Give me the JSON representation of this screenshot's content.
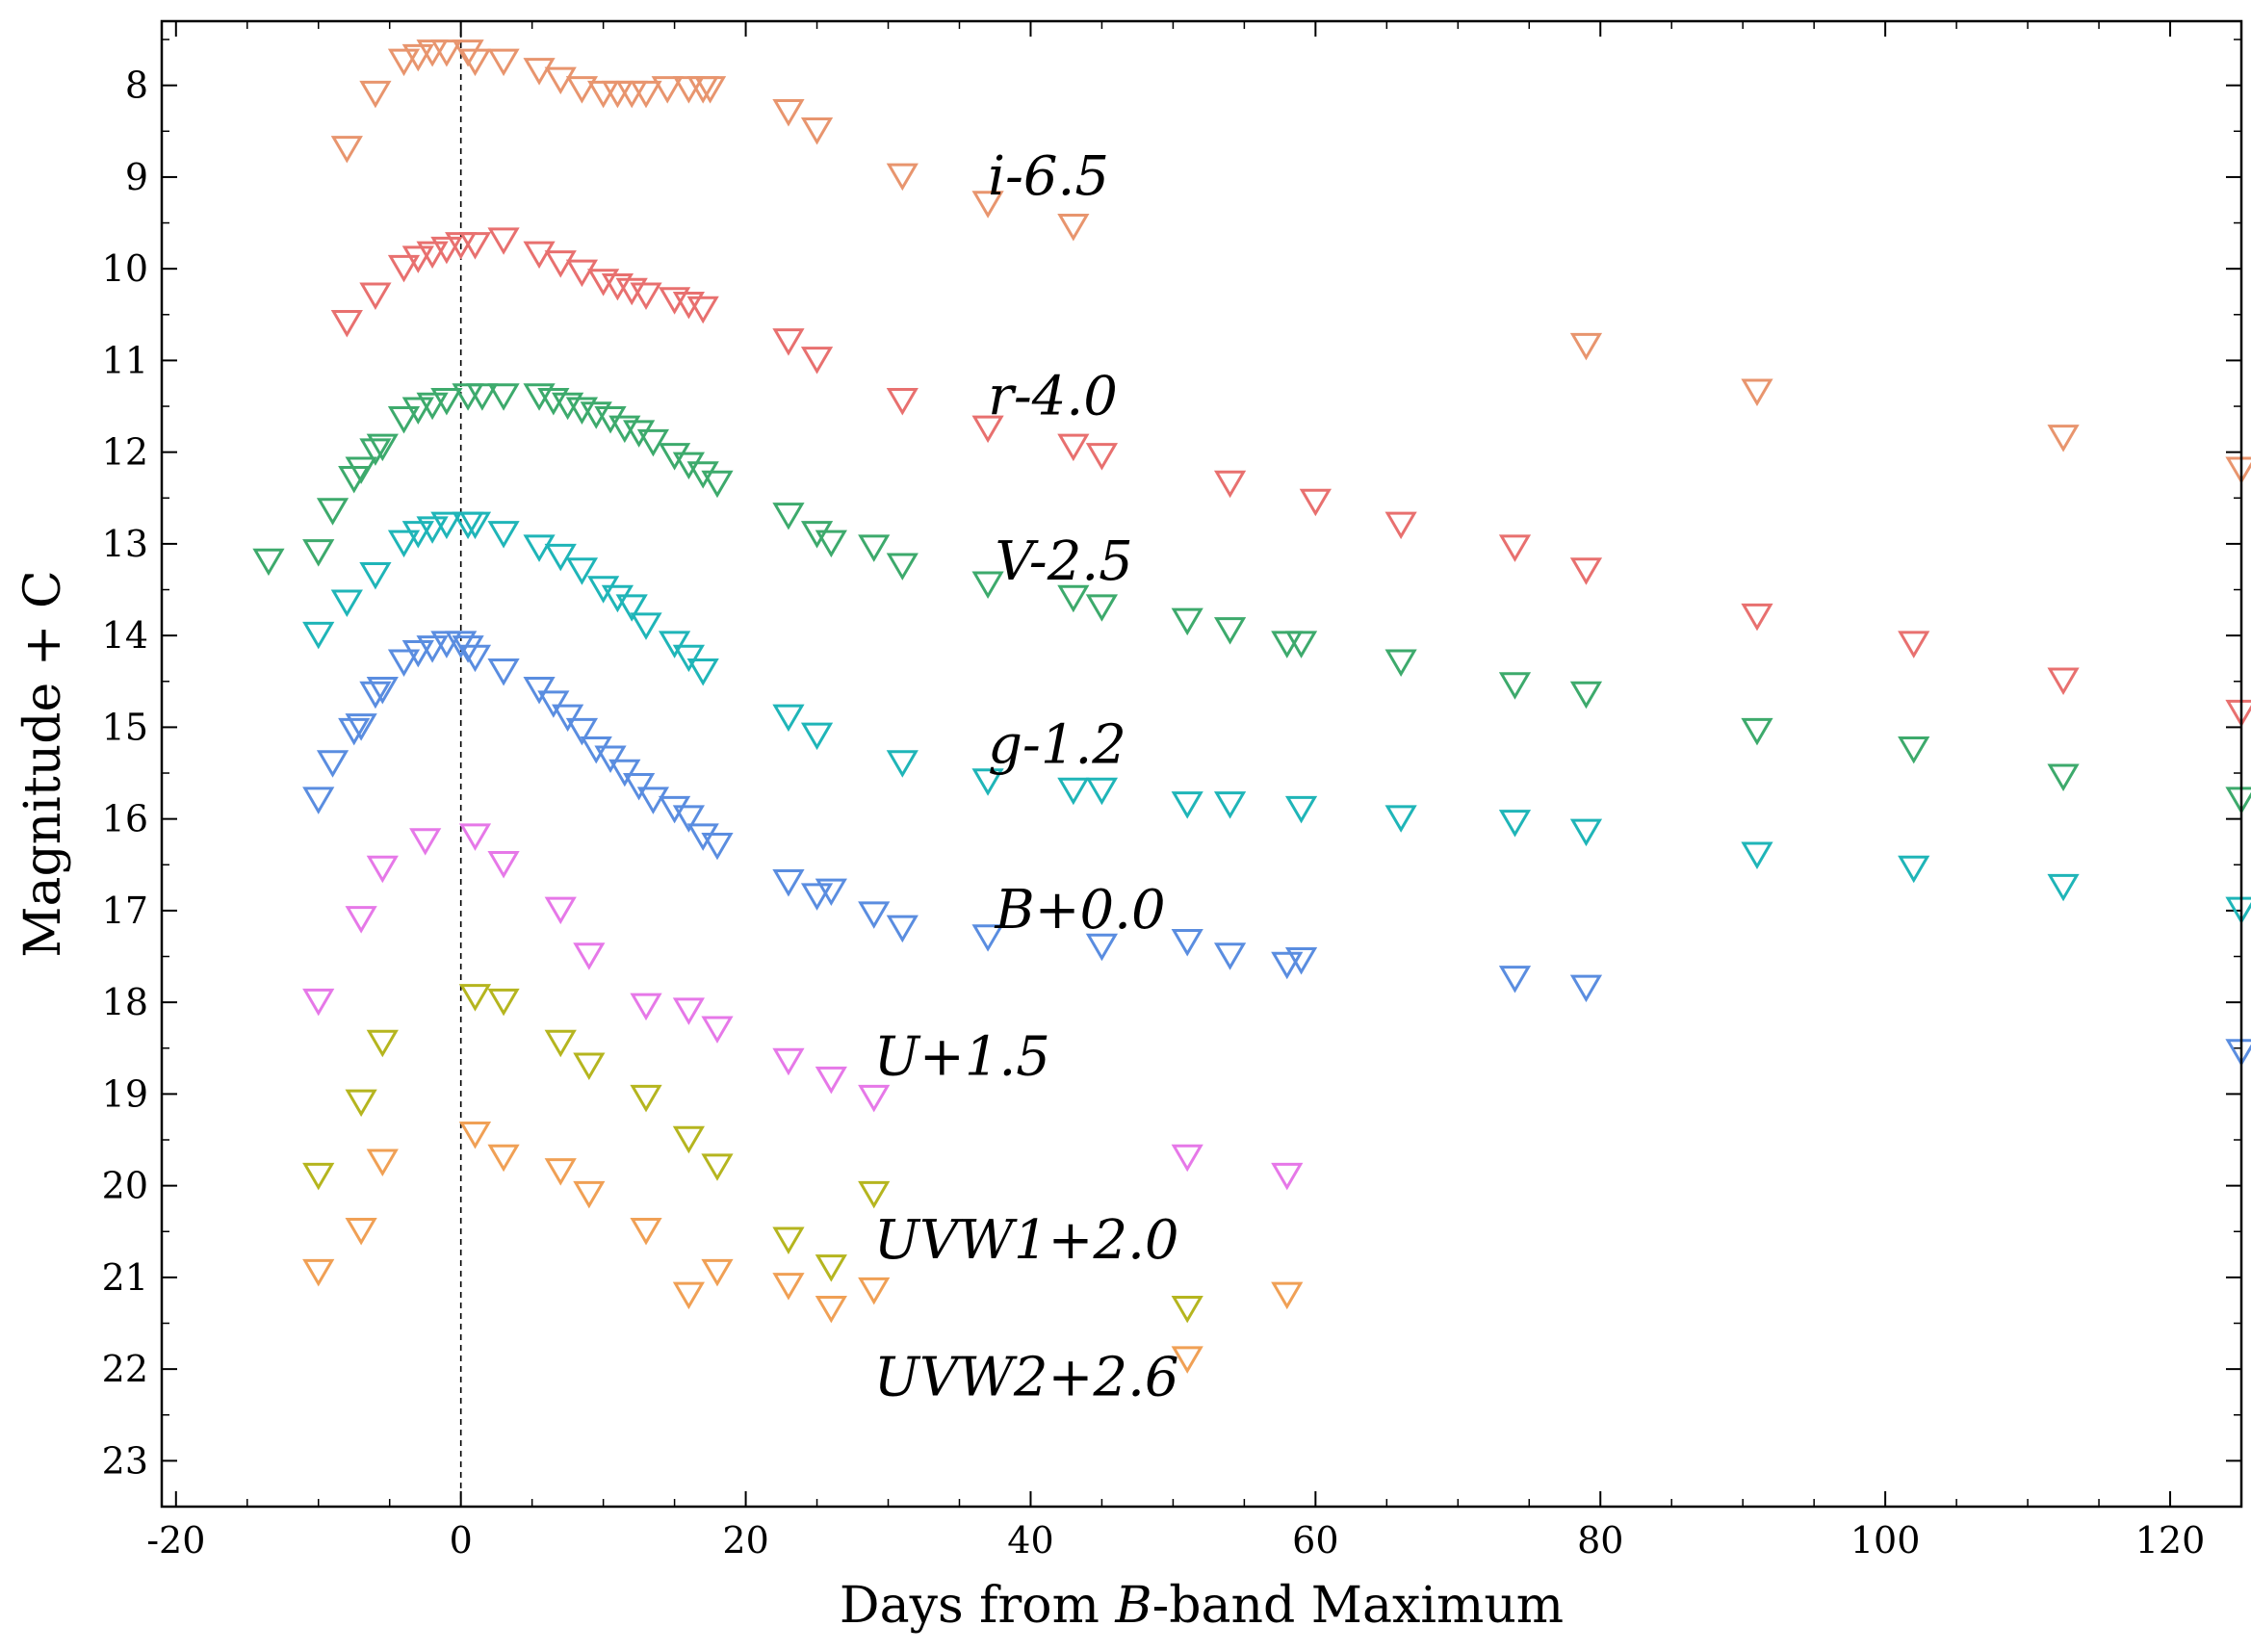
{
  "chart_data": {
    "type": "scatter",
    "title": "",
    "xlabel": "Days from B-band Maximum",
    "xlabel_prefix": "Days from ",
    "xlabel_italic": "B",
    "xlabel_suffix": "-band Maximum",
    "ylabel": "Magnitude + C",
    "xlim": [
      -21,
      125
    ],
    "ylim": [
      23.5,
      7.3
    ],
    "y_inverted": true,
    "grid": false,
    "marker": "open-down-triangle",
    "xticks": [
      -20,
      0,
      20,
      40,
      60,
      80,
      100,
      120
    ],
    "xtick_labels": [
      "-20",
      "0",
      "20",
      "40",
      "60",
      "80",
      "100",
      "120"
    ],
    "yticks": [
      8,
      9,
      10,
      11,
      12,
      13,
      14,
      15,
      16,
      17,
      18,
      19,
      20,
      21,
      22,
      23
    ],
    "ytick_labels": [
      "8",
      "9",
      "10",
      "11",
      "12",
      "13",
      "14",
      "15",
      "16",
      "17",
      "18",
      "19",
      "20",
      "21",
      "22",
      "23"
    ],
    "reference_line": {
      "x": 0,
      "style": "dashed"
    },
    "series": [
      {
        "name": "i-6.5",
        "label_x": 37,
        "label_y": 9.0,
        "color": "#E8956E",
        "x": [
          -8,
          -6,
          -4,
          -3,
          -2,
          -1,
          0.5,
          1,
          3,
          5.5,
          7,
          8.5,
          10,
          11,
          12,
          13,
          14.5,
          16,
          17,
          17.5,
          23,
          25,
          31,
          37,
          43,
          79,
          91,
          112.5,
          125
        ],
        "y": [
          8.65,
          8.05,
          7.7,
          7.65,
          7.6,
          7.6,
          7.6,
          7.7,
          7.7,
          7.8,
          7.9,
          8.0,
          8.05,
          8.05,
          8.05,
          8.05,
          8.0,
          8.0,
          8.0,
          8.0,
          8.25,
          8.45,
          8.95,
          9.25,
          9.5,
          10.8,
          11.3,
          11.8,
          12.15
        ]
      },
      {
        "name": "r-4.0",
        "label_x": 37,
        "label_y": 11.4,
        "color": "#E8706F",
        "x": [
          -8,
          -6,
          -4,
          -3,
          -2,
          -1,
          0,
          1,
          3,
          5.5,
          7,
          8.5,
          10,
          11,
          12,
          13,
          15,
          16,
          17,
          23,
          25,
          31,
          37,
          43,
          45,
          54,
          60,
          66,
          74,
          79,
          91,
          102,
          112.5,
          125
        ],
        "y": [
          10.55,
          10.25,
          9.95,
          9.85,
          9.8,
          9.75,
          9.7,
          9.7,
          9.65,
          9.8,
          9.9,
          10.0,
          10.1,
          10.15,
          10.2,
          10.25,
          10.3,
          10.35,
          10.4,
          10.75,
          10.95,
          11.4,
          11.7,
          11.9,
          12.0,
          12.3,
          12.5,
          12.75,
          13.0,
          13.25,
          13.75,
          14.05,
          14.45,
          14.8
        ]
      },
      {
        "name": "V-2.5",
        "label_x": 37.5,
        "label_y": 13.2,
        "color": "#3DAA6C",
        "x": [
          -13.5,
          -10,
          -9,
          -7.5,
          -7,
          -6,
          -5.5,
          -4,
          -3,
          -2,
          -1,
          0.5,
          1.5,
          3,
          5.5,
          6.5,
          7.5,
          8.5,
          9.5,
          10.5,
          11.5,
          12.5,
          13.5,
          15,
          16,
          17,
          18,
          23,
          25,
          26,
          29,
          31,
          37,
          43,
          45,
          51,
          54,
          58,
          59,
          66,
          74,
          79,
          91,
          102,
          112.5,
          125
        ],
        "y": [
          13.15,
          13.05,
          12.6,
          12.25,
          12.15,
          11.95,
          11.9,
          11.6,
          11.5,
          11.45,
          11.4,
          11.35,
          11.35,
          11.35,
          11.35,
          11.4,
          11.45,
          11.5,
          11.55,
          11.6,
          11.7,
          11.75,
          11.85,
          12.0,
          12.1,
          12.2,
          12.3,
          12.65,
          12.85,
          12.95,
          13.0,
          13.2,
          13.4,
          13.55,
          13.65,
          13.8,
          13.9,
          14.05,
          14.05,
          14.25,
          14.5,
          14.6,
          15.0,
          15.2,
          15.5,
          15.75
        ]
      },
      {
        "name": "g-1.2",
        "label_x": 37,
        "label_y": 15.2,
        "color": "#1FB5B8",
        "x": [
          -10,
          -8,
          -6,
          -4,
          -3,
          -2,
          -1,
          0.5,
          1,
          3,
          5.5,
          7,
          8.5,
          10,
          11,
          12,
          13,
          15,
          16,
          17,
          23,
          25,
          31,
          37,
          43,
          45,
          51,
          54,
          59,
          66,
          74,
          79,
          91,
          102,
          112.5,
          125
        ],
        "y": [
          13.95,
          13.6,
          13.3,
          12.95,
          12.85,
          12.8,
          12.75,
          12.75,
          12.75,
          12.85,
          13.0,
          13.1,
          13.25,
          13.45,
          13.55,
          13.65,
          13.85,
          14.05,
          14.2,
          14.35,
          14.85,
          15.05,
          15.35,
          15.55,
          15.65,
          15.65,
          15.8,
          15.8,
          15.85,
          15.95,
          16.0,
          16.1,
          16.35,
          16.5,
          16.7,
          16.95
        ]
      },
      {
        "name": "B+0.0",
        "label_x": 37.5,
        "label_y": 17.0,
        "color": "#5A8DE0",
        "x": [
          -10,
          -9,
          -7.5,
          -7,
          -6,
          -5.5,
          -4,
          -3,
          -2,
          -1,
          0,
          0.5,
          1,
          3,
          5.5,
          6.5,
          7.5,
          8.5,
          9.5,
          10.5,
          11.5,
          12.5,
          13.5,
          15,
          16,
          17,
          18,
          23,
          25,
          26,
          29,
          31,
          37,
          45,
          51,
          54,
          58,
          59,
          74,
          79,
          125
        ],
        "y": [
          15.75,
          15.35,
          15.0,
          14.95,
          14.6,
          14.55,
          14.25,
          14.15,
          14.1,
          14.05,
          14.05,
          14.1,
          14.2,
          14.35,
          14.55,
          14.7,
          14.85,
          15.0,
          15.2,
          15.3,
          15.45,
          15.6,
          15.75,
          15.85,
          15.95,
          16.15,
          16.25,
          16.65,
          16.8,
          16.75,
          17.0,
          17.15,
          17.25,
          17.35,
          17.3,
          17.45,
          17.55,
          17.5,
          17.7,
          17.8,
          18.5
        ]
      },
      {
        "name": "U+1.5",
        "label_x": 29,
        "label_y": 18.6,
        "color": "#E678E8",
        "x": [
          -10,
          -7,
          -5.5,
          -2.5,
          1,
          3,
          7,
          9,
          13,
          16,
          18,
          23,
          26,
          29,
          51,
          58
        ],
        "y": [
          17.95,
          17.05,
          16.5,
          16.2,
          16.15,
          16.45,
          16.95,
          17.45,
          18.0,
          18.05,
          18.25,
          18.6,
          18.8,
          19.0,
          19.65,
          19.85
        ]
      },
      {
        "name": "UVW1+2.0",
        "label_x": 29,
        "label_y": 20.6,
        "color": "#B5B51F",
        "x": [
          -10,
          -7,
          -5.5,
          1,
          3,
          7,
          9,
          13,
          16,
          18,
          23,
          26,
          29,
          51
        ],
        "y": [
          19.85,
          19.05,
          18.4,
          17.9,
          17.95,
          18.4,
          18.65,
          19.0,
          19.45,
          19.75,
          20.55,
          20.85,
          20.05,
          21.3
        ]
      },
      {
        "name": "UVW2+2.6",
        "label_x": 29,
        "label_y": 22.1,
        "color": "#F0A055",
        "x": [
          -10,
          -7,
          -5.5,
          1,
          3,
          7,
          9,
          13,
          16,
          18,
          23,
          26,
          29,
          51,
          58
        ],
        "y": [
          20.9,
          20.45,
          19.7,
          19.4,
          19.65,
          19.8,
          20.05,
          20.45,
          21.15,
          20.9,
          21.05,
          21.3,
          21.1,
          21.85,
          21.15
        ]
      }
    ]
  }
}
